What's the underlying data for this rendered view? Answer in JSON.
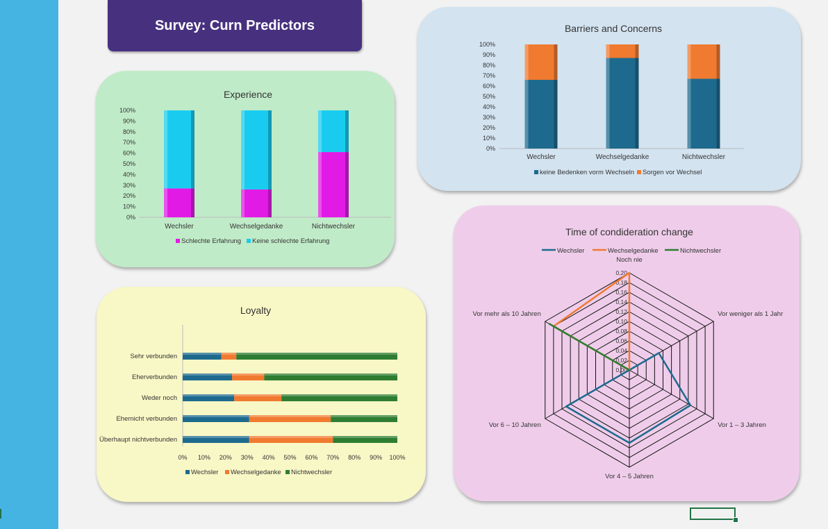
{
  "page_title": "Survey: Curn Predictors",
  "colors": {
    "sidebar": "#45b4e3",
    "title_bg": "#47317f",
    "experience_bg": "#c0ebc8",
    "barriers_bg": "#d3e3f0",
    "loyalty_bg": "#f8f7c6",
    "radar_bg": "#efcdea"
  },
  "chart_data": [
    {
      "id": "experience",
      "type": "bar",
      "stacked": "percent",
      "title": "Experience",
      "categories": [
        "Wechsler",
        "Wechselgedanke",
        "Nichtwechsler"
      ],
      "y_ticks": [
        "0%",
        "10%",
        "20%",
        "30%",
        "40%",
        "50%",
        "60%",
        "70%",
        "80%",
        "90%",
        "100%"
      ],
      "series": [
        {
          "name": "Schlechte Erfahrung",
          "color": "#e21ae6",
          "values": [
            27,
            26,
            61
          ]
        },
        {
          "name": "Keine schlechte Erfahrung",
          "color": "#19ccef",
          "values": [
            73,
            74,
            39
          ]
        }
      ],
      "legend": "bottom"
    },
    {
      "id": "barriers",
      "type": "bar",
      "stacked": "percent",
      "title": "Barriers and Concerns",
      "categories": [
        "Wechsler",
        "Wechselgedanke",
        "Nichtwechsler"
      ],
      "y_ticks": [
        "0%",
        "10%",
        "20%",
        "30%",
        "40%",
        "50%",
        "60%",
        "70%",
        "80%",
        "90%",
        "100%"
      ],
      "series": [
        {
          "name": "keine Bedenken vorm Wechseln",
          "color": "#1d6a8e",
          "values": [
            66,
            87,
            67
          ]
        },
        {
          "name": "Sorgen vor Wechsel",
          "color": "#f07a30",
          "values": [
            34,
            13,
            33
          ]
        }
      ],
      "legend": "bottom"
    },
    {
      "id": "loyalty",
      "type": "bar",
      "orientation": "horizontal",
      "stacked": "percent",
      "title": "Loyalty",
      "categories": [
        "Sehr verbunden",
        "Eherverbunden",
        "Weder noch",
        "Ehernicht verbunden",
        "Überhaupt nichtverbunden"
      ],
      "x_ticks": [
        "0%",
        "10%",
        "20%",
        "30%",
        "40%",
        "50%",
        "60%",
        "70%",
        "80%",
        "90%",
        "100%"
      ],
      "series": [
        {
          "name": "Wechsler",
          "color": "#1d6a8e",
          "values": [
            18,
            23,
            24,
            31,
            31
          ]
        },
        {
          "name": "Wechselgedanke",
          "color": "#f07a30",
          "values": [
            7,
            15,
            22,
            38,
            39
          ]
        },
        {
          "name": "Nichtwechsler",
          "color": "#2e7d32",
          "values": [
            75,
            62,
            54,
            31,
            30
          ]
        }
      ],
      "legend": "bottom"
    },
    {
      "id": "radar",
      "type": "radar",
      "title": "Time of condideration change",
      "axes": [
        "Noch nie",
        "Vor weniger als 1 Jahr",
        "Vor 1 – 3 Jahren",
        "Vor 4 – 5 Jahren",
        "Vor 6 – 10 Jahren",
        "Vor mehr als 10 Jahren"
      ],
      "r_ticks": [
        "0,00",
        "0,02",
        "0,04",
        "0,06",
        "0,08",
        "0,10",
        "0,12",
        "0,14",
        "0,16",
        "0,18",
        "0,20"
      ],
      "r_max": 0.2,
      "series": [
        {
          "name": "Wechsler",
          "color": "#1d6a8e",
          "values": [
            0.0,
            0.07,
            0.145,
            0.15,
            0.15,
            0.0
          ]
        },
        {
          "name": "Wechselgedanke",
          "color": "#f07a30",
          "values": [
            0.2,
            0.0,
            0.0,
            0.0,
            0.0,
            0.18
          ]
        },
        {
          "name": "Nichtwechsler",
          "color": "#2e7d32",
          "values": [
            0.0,
            0.0,
            0.0,
            0.0,
            0.0,
            0.19
          ]
        }
      ],
      "legend": "top"
    }
  ]
}
